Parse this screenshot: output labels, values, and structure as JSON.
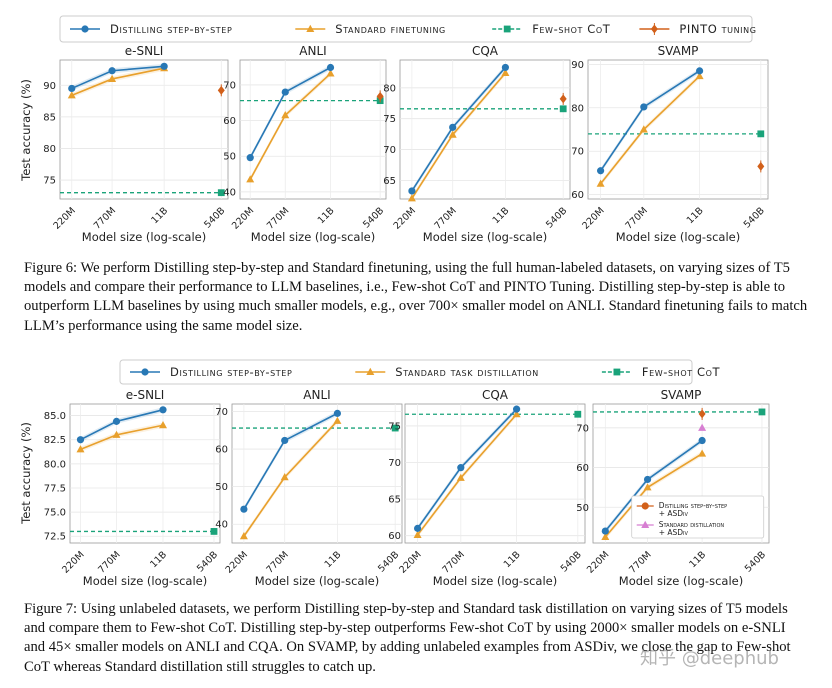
{
  "figure6": {
    "legend": [
      "Distilling step-by-step",
      "Standard finetuning",
      "Few-shot CoT",
      "PINTO tuning"
    ],
    "caption": "Figure 6: We perform Distilling step-by-step and Standard finetuning, using the full human-labeled datasets, on varying sizes of T5 models and compare their performance to LLM baselines, i.e., Few-shot CoT and PINTO Tuning. Distilling step-by-step is able to outperform LLM baselines by using much smaller models, e.g., over 700× smaller model on ANLI. Standard finetuning fails to match LLM’s performance using the same model size."
  },
  "figure7": {
    "legend": [
      "Distilling step-by-step",
      "Standard task distillation",
      "Few-shot CoT"
    ],
    "caption": "Figure 7: Using unlabeled datasets, we perform Distilling step-by-step and Standard task distillation on varying sizes of T5 models and compare them to Few-shot CoT. Distilling step-by-step outperforms Few-shot CoT by using 2000× smaller models on e-SNLI and 45× smaller models on ANLI and CQA. On SVAMP, by adding unlabeled examples from ASDiv, we close the gap to Few-shot CoT whereas Standard distillation still struggles to catch up.",
    "svamp_legend": [
      "Distilling step-by-step",
      "+ ASDiv",
      "Standard distillation",
      "+ ASDiv"
    ]
  },
  "xlabel": "Model size (log-scale)",
  "ylabel": "Test accuracy (%)",
  "x_ticks": [
    "220M",
    "770M",
    "11B",
    "540B"
  ],
  "watermark": "知乎 @deephub",
  "colors": {
    "distill": "#2878b5",
    "standard": "#e8a02c",
    "fewshot": "#1aa37a",
    "pinto": "#d2601a",
    "pink": "#d77fd2"
  },
  "chart_data": [
    {
      "type": "line",
      "title": "e-SNLI",
      "figure": 6,
      "ylim": [
        72,
        94
      ],
      "yticks": [
        75,
        80,
        85,
        90
      ],
      "ytick_labels": [
        "75",
        "80",
        "85",
        "90"
      ],
      "distill": [
        89.5,
        92.3,
        93.0
      ],
      "standard": [
        88.4,
        91.0,
        92.7
      ],
      "fewshot": 73.0,
      "pinto": 89.2
    },
    {
      "type": "line",
      "title": "ANLI",
      "figure": 6,
      "ylim": [
        38,
        77
      ],
      "yticks": [
        40,
        50,
        60,
        70
      ],
      "ytick_labels": [
        "40",
        "50",
        "60",
        "70"
      ],
      "distill": [
        49.6,
        68.0,
        74.9
      ],
      "standard": [
        43.5,
        61.5,
        73.2
      ],
      "fewshot": 65.6,
      "pinto": 66.8
    },
    {
      "type": "line",
      "title": "CQA",
      "figure": 6,
      "ylim": [
        62,
        84.5
      ],
      "yticks": [
        65,
        70,
        75,
        80
      ],
      "ytick_labels": [
        "65",
        "70",
        "75",
        "80"
      ],
      "distill": [
        63.3,
        73.6,
        83.3
      ],
      "standard": [
        62.1,
        72.4,
        82.4
      ],
      "fewshot": 76.6,
      "pinto": 78.2
    },
    {
      "type": "line",
      "title": "SVAMP",
      "figure": 6,
      "ylim": [
        59,
        91
      ],
      "yticks": [
        60,
        70,
        80,
        90
      ],
      "ytick_labels": [
        "60",
        "70",
        "80",
        "90"
      ],
      "distill": [
        65.5,
        80.2,
        88.5
      ],
      "standard": [
        62.5,
        75.0,
        87.3
      ],
      "fewshot": 74.0,
      "pinto": 66.5
    },
    {
      "type": "line",
      "title": "e-SNLI",
      "figure": 7,
      "ylim": [
        71.8,
        86.2
      ],
      "yticks": [
        72.5,
        75,
        77.5,
        80,
        82.5,
        85
      ],
      "ytick_labels": [
        "72.5",
        "75.0",
        "77.5",
        "80.0",
        "82.5",
        "85.0"
      ],
      "distill": [
        82.5,
        84.4,
        85.6
      ],
      "standard": [
        81.5,
        83.0,
        84.0
      ],
      "fewshot": 73.0
    },
    {
      "type": "line",
      "title": "ANLI",
      "figure": 7,
      "ylim": [
        35,
        72
      ],
      "yticks": [
        40,
        50,
        60,
        70
      ],
      "ytick_labels": [
        "40",
        "50",
        "60",
        "70"
      ],
      "distill": [
        44.0,
        62.3,
        69.5
      ],
      "standard": [
        36.8,
        52.5,
        67.5
      ],
      "fewshot": 65.6
    },
    {
      "type": "line",
      "title": "CQA",
      "figure": 7,
      "ylim": [
        59,
        78
      ],
      "yticks": [
        60,
        65,
        70,
        75
      ],
      "ytick_labels": [
        "60",
        "65",
        "70",
        "75"
      ],
      "distill": [
        61.0,
        69.3,
        77.3
      ],
      "standard": [
        60.1,
        67.9,
        76.6
      ],
      "fewshot": 76.6
    },
    {
      "type": "line",
      "title": "SVAMP",
      "figure": 7,
      "ylim": [
        41,
        76
      ],
      "yticks": [
        50,
        60,
        70
      ],
      "ytick_labels": [
        "50",
        "60",
        "70"
      ],
      "distill": [
        44.0,
        57.0,
        66.8
      ],
      "standard": [
        42.5,
        55.0,
        63.5
      ],
      "fewshot": 74.0,
      "distill_asdiv": 73.5,
      "standard_asdiv": 70.0
    }
  ]
}
